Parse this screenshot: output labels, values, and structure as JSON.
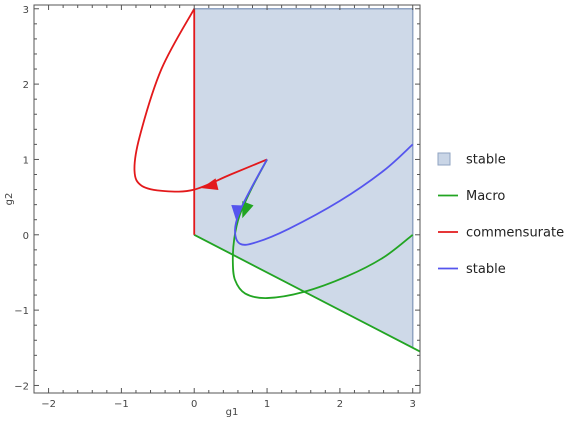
{
  "chart_data": {
    "type": "line",
    "xlabel": "g1",
    "ylabel": "g2",
    "xlim": [
      -2.2,
      3.1
    ],
    "ylim": [
      -2.1,
      3.05
    ],
    "xticks": [
      -2,
      -1,
      0,
      1,
      2,
      3
    ],
    "xtick_labels": [
      "−2",
      "−1",
      "0",
      "1",
      "2",
      "3"
    ],
    "yticks": [
      -2,
      -1,
      0,
      1,
      2,
      3
    ],
    "ytick_labels": [
      "−2",
      "−1",
      "0",
      "1",
      "2",
      "3"
    ],
    "grid": false,
    "legend_position": "right",
    "region": {
      "name": "stable",
      "color": "#c9d5e6",
      "edge_color": "#8fa3c2",
      "polygon": [
        [
          0,
          0
        ],
        [
          0,
          3
        ],
        [
          3,
          3
        ],
        [
          3,
          -1.5
        ]
      ]
    },
    "series": [
      {
        "name": "Macro",
        "color": "#22a522",
        "segments": [
          [
            [
              0,
              0
            ],
            [
              3.1,
              -1.55
            ]
          ],
          [
            [
              1,
              1
            ],
            [
              0.78,
              0.6
            ],
            [
              0.62,
              0.25
            ],
            [
              0.55,
              -0.05
            ],
            [
              0.53,
              -0.35
            ],
            [
              0.56,
              -0.6
            ],
            [
              0.7,
              -0.78
            ],
            [
              1.0,
              -0.84
            ],
            [
              1.5,
              -0.76
            ],
            [
              2.1,
              -0.55
            ],
            [
              2.6,
              -0.3
            ],
            [
              3.0,
              0
            ]
          ]
        ],
        "arrow": {
          "at": [
            0.66,
            0.22
          ],
          "direction": [
            -0.3,
            -0.8
          ]
        }
      },
      {
        "name": "commensurate",
        "color": "#e3191b",
        "segments": [
          [
            [
              0,
              0
            ],
            [
              0,
              3
            ]
          ],
          [
            [
              0,
              3
            ],
            [
              -0.45,
              2.2
            ],
            [
              -0.75,
              1.3
            ],
            [
              -0.82,
              0.85
            ],
            [
              -0.72,
              0.65
            ],
            [
              -0.4,
              0.58
            ],
            [
              0.0,
              0.6
            ],
            [
              0.5,
              0.8
            ],
            [
              1,
              1
            ]
          ]
        ],
        "arrow": {
          "at": [
            0.1,
            0.62
          ],
          "direction": [
            -1,
            -0.25
          ]
        }
      },
      {
        "name": "stable",
        "color": "#5555ee",
        "segments": [
          [
            [
              1,
              1
            ],
            [
              0.8,
              0.65
            ],
            [
              0.62,
              0.3
            ],
            [
              0.56,
              0.05
            ],
            [
              0.63,
              -0.12
            ],
            [
              0.85,
              -0.1
            ],
            [
              1.3,
              0.08
            ],
            [
              2.0,
              0.45
            ],
            [
              2.6,
              0.85
            ],
            [
              3.0,
              1.2
            ]
          ]
        ],
        "arrow": {
          "at": [
            0.58,
            0.18
          ],
          "direction": [
            -0.05,
            -1
          ]
        }
      }
    ],
    "legend": [
      {
        "label": "stable",
        "kind": "patch",
        "color": "#c9d5e6",
        "edge": "#8fa3c2"
      },
      {
        "label": "Macro",
        "kind": "line",
        "color": "#22a522"
      },
      {
        "label": "commensurate",
        "kind": "line",
        "color": "#e3191b"
      },
      {
        "label": "stable",
        "kind": "line",
        "color": "#5555ee"
      }
    ]
  }
}
